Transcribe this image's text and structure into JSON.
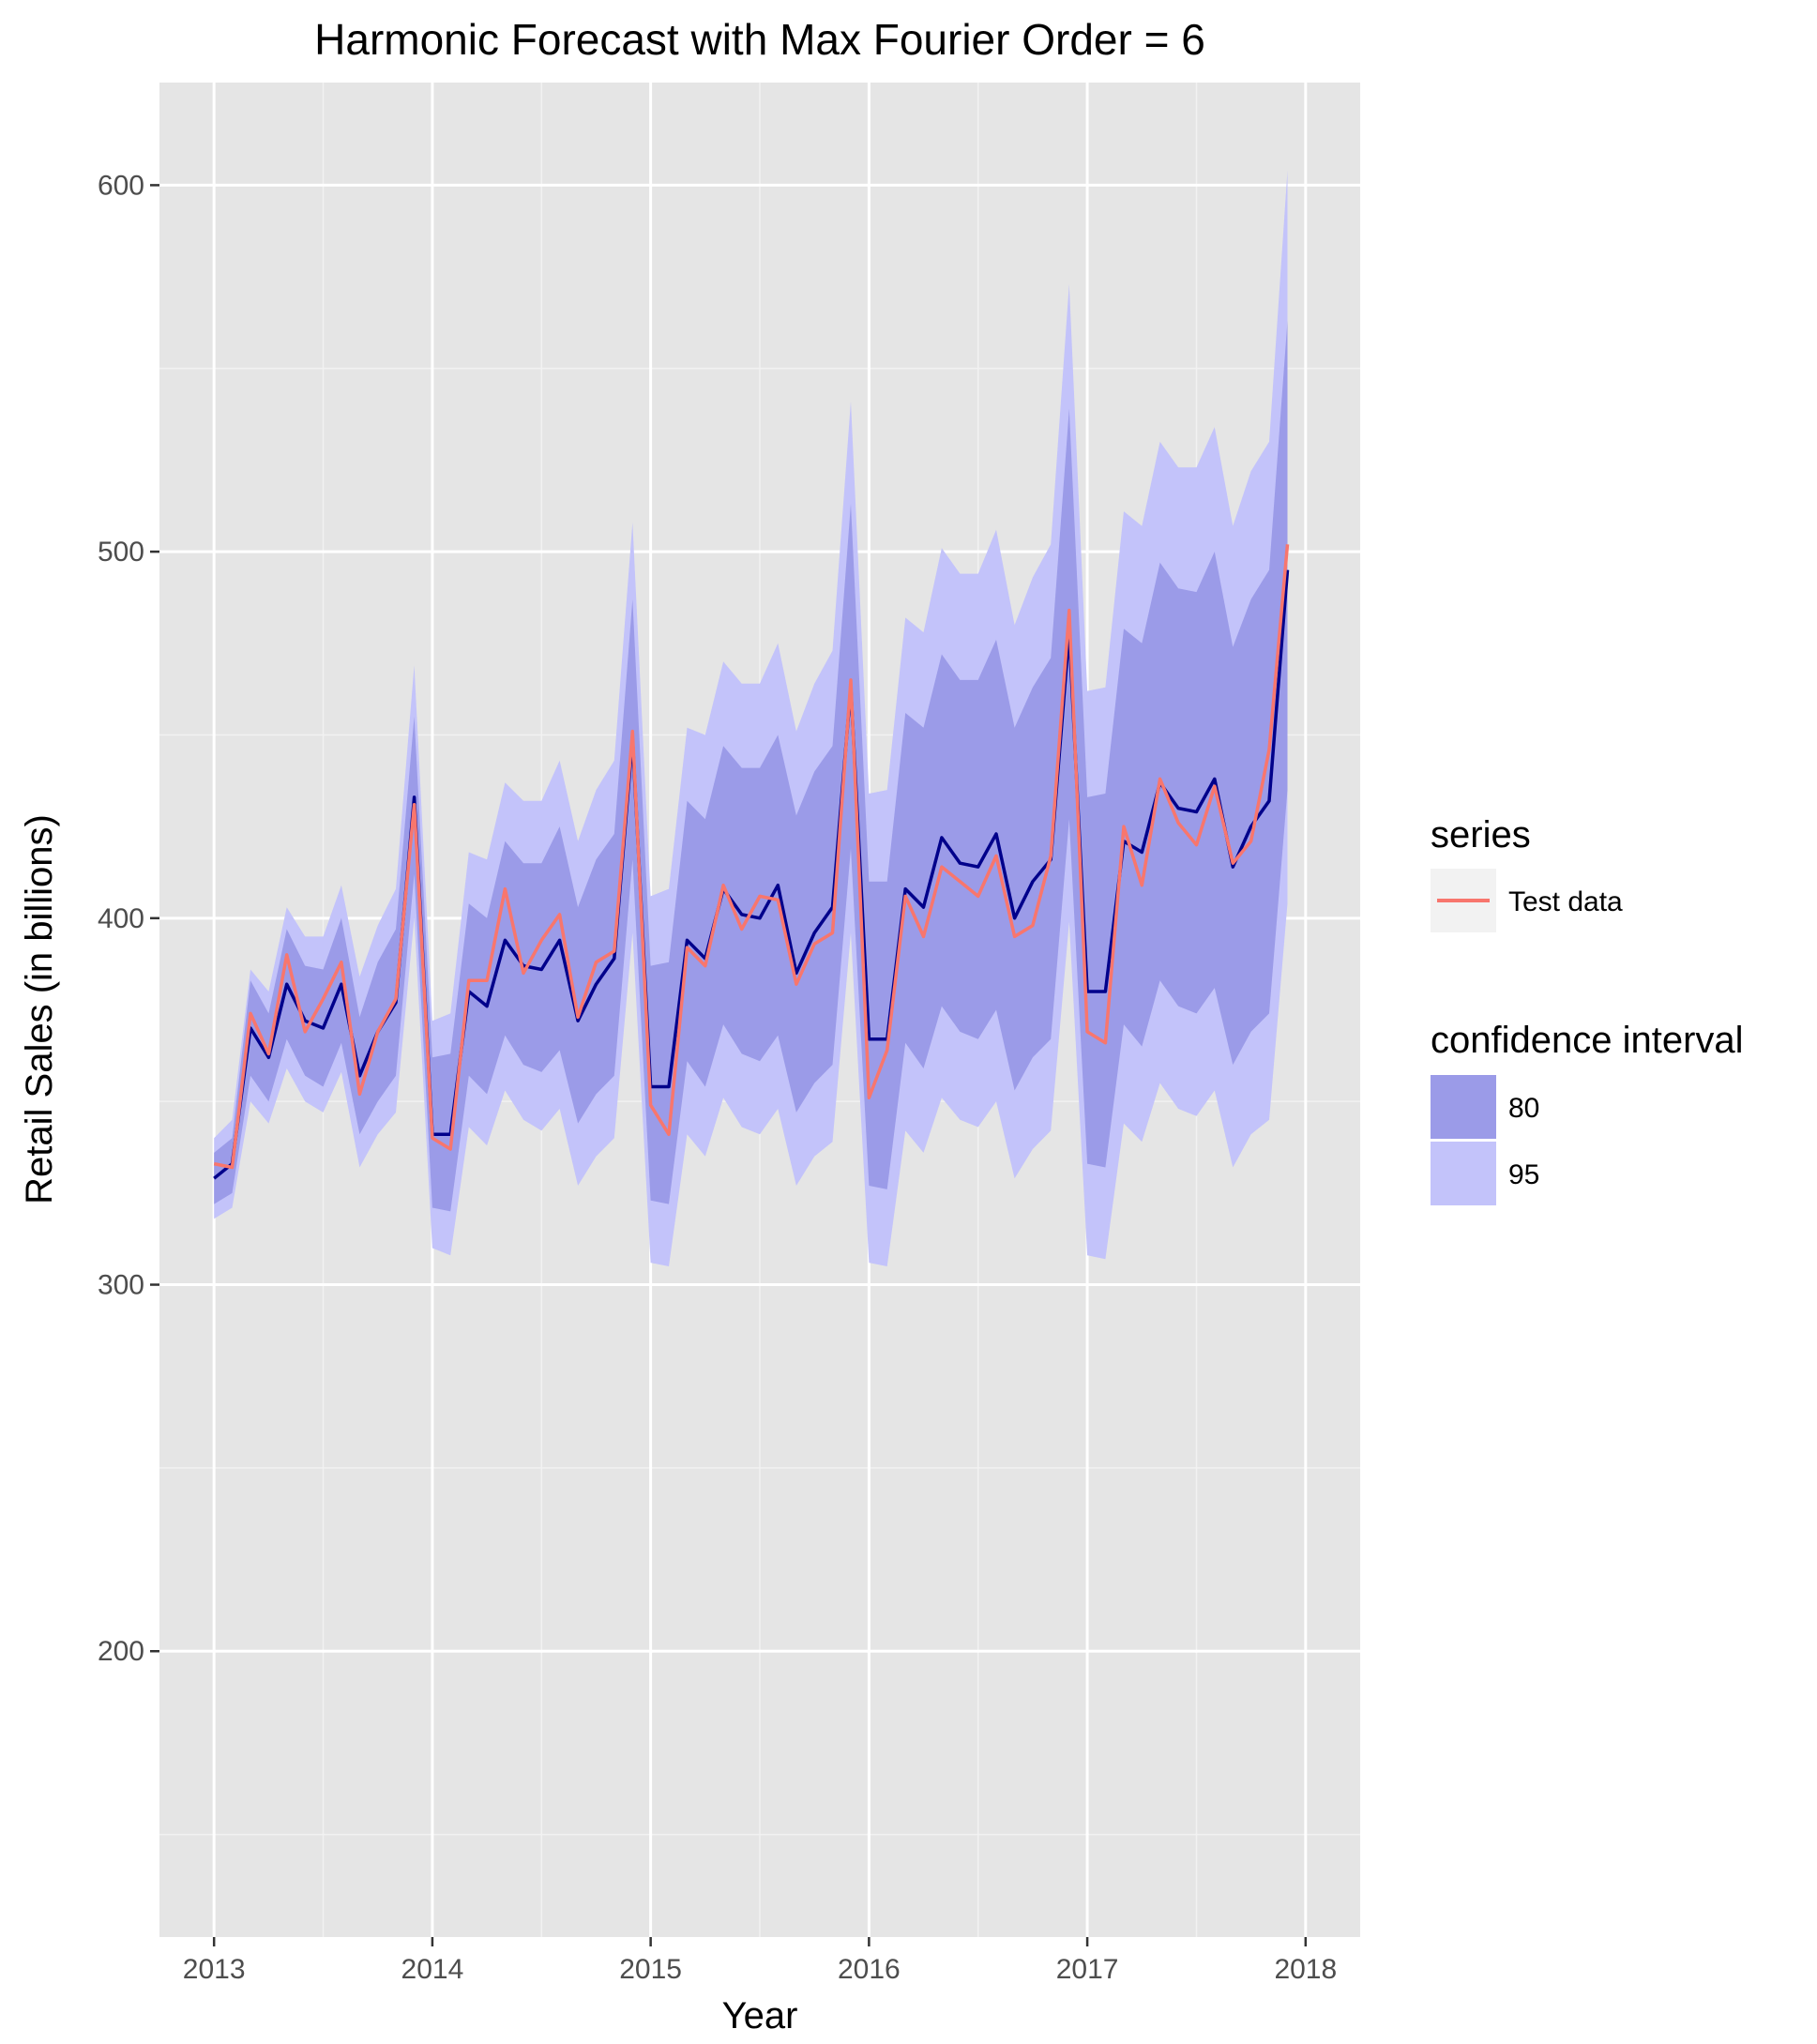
{
  "chart_data": {
    "type": "line",
    "title": "Harmonic Forecast with Max Fourier Order = 6",
    "xlabel": "Year",
    "ylabel": "Retail Sales (in billions)",
    "xlim": [
      2012.75,
      2018.25
    ],
    "ylim": [
      122,
      628
    ],
    "x_ticks": [
      2013,
      2014,
      2015,
      2016,
      2017,
      2018
    ],
    "x_tick_labels": [
      "2013",
      "2014",
      "2015",
      "2016",
      "2017",
      "2018"
    ],
    "y_ticks": [
      200,
      300,
      400,
      500,
      600
    ],
    "y_tick_labels": [
      "200",
      "300",
      "400",
      "500",
      "600"
    ],
    "grid": true,
    "legend_position": "right",
    "x": [
      2013.0,
      2013.083,
      2013.167,
      2013.25,
      2013.333,
      2013.417,
      2013.5,
      2013.583,
      2013.667,
      2013.75,
      2013.833,
      2013.917,
      2014.0,
      2014.083,
      2014.167,
      2014.25,
      2014.333,
      2014.417,
      2014.5,
      2014.583,
      2014.667,
      2014.75,
      2014.833,
      2014.917,
      2015.0,
      2015.083,
      2015.167,
      2015.25,
      2015.333,
      2015.417,
      2015.5,
      2015.583,
      2015.667,
      2015.75,
      2015.833,
      2015.917,
      2016.0,
      2016.083,
      2016.167,
      2016.25,
      2016.333,
      2016.417,
      2016.5,
      2016.583,
      2016.667,
      2016.75,
      2016.833,
      2016.917,
      2017.0,
      2017.083,
      2017.167,
      2017.25,
      2017.333,
      2017.417,
      2017.5,
      2017.583,
      2017.667,
      2017.75,
      2017.833,
      2017.917
    ],
    "series": [
      {
        "name": "Test data",
        "color": "#f8766d",
        "values": [
          333,
          332,
          374,
          363,
          390,
          369,
          378,
          388,
          352,
          369,
          378,
          431,
          340,
          337,
          383,
          383,
          408,
          385,
          394,
          401,
          373,
          388,
          391,
          451,
          349,
          341,
          392,
          387,
          409,
          397,
          406,
          405,
          382,
          393,
          396,
          465,
          351,
          364,
          406,
          395,
          414,
          410,
          406,
          417,
          395,
          398,
          417,
          484,
          369,
          366,
          425,
          409,
          438,
          426,
          420,
          436,
          415,
          421,
          446,
          502
        ]
      }
    ],
    "forecast": {
      "color": "#00008b",
      "values": [
        329,
        333,
        370,
        362,
        382,
        372,
        370,
        382,
        357,
        369,
        377,
        433,
        341,
        341,
        380,
        376,
        394,
        387,
        386,
        394,
        372,
        382,
        389,
        449,
        354,
        354,
        394,
        389,
        408,
        401,
        400,
        409,
        385,
        396,
        403,
        463,
        367,
        367,
        408,
        403,
        422,
        415,
        414,
        423,
        400,
        410,
        416,
        478,
        380,
        380,
        421,
        418,
        437,
        430,
        429,
        438,
        414,
        425,
        432,
        495
      ]
    },
    "intervals": [
      {
        "name": "80",
        "color": "#9b9be8",
        "lower": [
          322,
          325,
          357,
          350,
          367,
          357,
          354,
          366,
          341,
          350,
          357,
          412,
          321,
          320,
          357,
          352,
          368,
          360,
          358,
          364,
          344,
          352,
          357,
          416,
          323,
          322,
          361,
          354,
          371,
          363,
          361,
          368,
          347,
          355,
          360,
          419,
          327,
          326,
          366,
          359,
          376,
          369,
          367,
          375,
          353,
          362,
          367,
          427,
          333,
          332,
          371,
          365,
          383,
          376,
          374,
          381,
          360,
          369,
          374,
          435
        ],
        "upper": [
          336,
          340,
          383,
          374,
          397,
          387,
          386,
          400,
          373,
          388,
          397,
          455,
          362,
          363,
          404,
          400,
          421,
          415,
          415,
          425,
          403,
          416,
          423,
          487,
          387,
          388,
          432,
          427,
          447,
          441,
          441,
          450,
          428,
          440,
          447,
          513,
          410,
          410,
          456,
          452,
          472,
          465,
          465,
          476,
          452,
          463,
          471,
          539,
          433,
          434,
          479,
          475,
          497,
          490,
          489,
          500,
          474,
          487,
          495,
          563
        ]
      },
      {
        "name": "95",
        "color": "#c3c3fa",
        "lower": [
          318,
          321,
          350,
          344,
          359,
          350,
          347,
          358,
          332,
          341,
          347,
          400,
          310,
          308,
          343,
          338,
          353,
          345,
          342,
          348,
          327,
          335,
          340,
          396,
          306,
          305,
          341,
          335,
          351,
          343,
          341,
          348,
          327,
          335,
          339,
          396,
          306,
          305,
          342,
          336,
          351,
          345,
          343,
          350,
          329,
          337,
          342,
          399,
          308,
          307,
          344,
          339,
          355,
          348,
          346,
          353,
          332,
          341,
          345,
          404
        ],
        "upper": [
          340,
          345,
          386,
          380,
          403,
          395,
          395,
          409,
          384,
          398,
          408,
          469,
          372,
          374,
          418,
          416,
          437,
          432,
          432,
          443,
          421,
          435,
          443,
          508,
          406,
          408,
          452,
          450,
          470,
          464,
          464,
          475,
          451,
          464,
          473,
          541,
          434,
          435,
          482,
          478,
          501,
          494,
          494,
          506,
          480,
          493,
          502,
          573,
          462,
          463,
          511,
          507,
          530,
          523,
          523,
          534,
          507,
          522,
          530,
          604
        ]
      }
    ],
    "legend": {
      "series_title": "series",
      "series_entries": [
        "Test data"
      ],
      "ci_title": "confidence interval",
      "ci_entries": [
        "80",
        "95"
      ]
    }
  }
}
